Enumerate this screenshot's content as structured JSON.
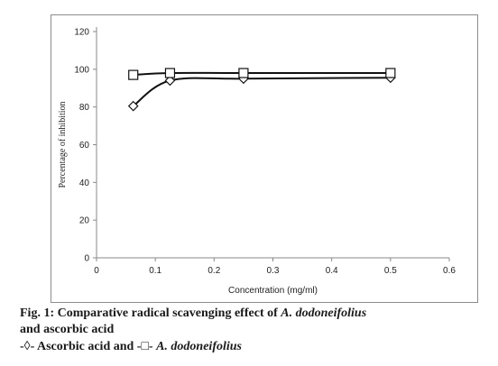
{
  "chart_data": {
    "type": "line",
    "title": "",
    "xlabel": "Concentration (mg/ml)",
    "ylabel": "Percentage of inhibition",
    "xlim": [
      0,
      0.6
    ],
    "ylim": [
      0,
      120
    ],
    "x_ticks": [
      "0",
      "0.1",
      "0.2",
      "0.3",
      "0.4",
      "0.5",
      "0.6"
    ],
    "y_ticks": [
      "0",
      "20",
      "40",
      "60",
      "80",
      "100",
      "120"
    ],
    "grid": false,
    "legend": "none",
    "series": [
      {
        "marker": "diamond",
        "x": [
          0.0625,
          0.125,
          0.25,
          0.5
        ],
        "y": [
          80.5,
          94,
          95,
          95.5
        ],
        "color": "#111111"
      },
      {
        "marker": "square",
        "x": [
          0.0625,
          0.125,
          0.25,
          0.5
        ],
        "y": [
          97,
          98,
          98,
          98
        ],
        "color": "#111111"
      }
    ]
  },
  "caption": {
    "line1_prefix": "Fig. 1: Comparative radical scavenging effect of ",
    "line1_italic": "A. dodoneifolius",
    "line2": "and ascorbic acid",
    "line3_a": "-◊- Ascorbic acid and  -□- ",
    "line3_italic": "A. dodoneifolius"
  }
}
